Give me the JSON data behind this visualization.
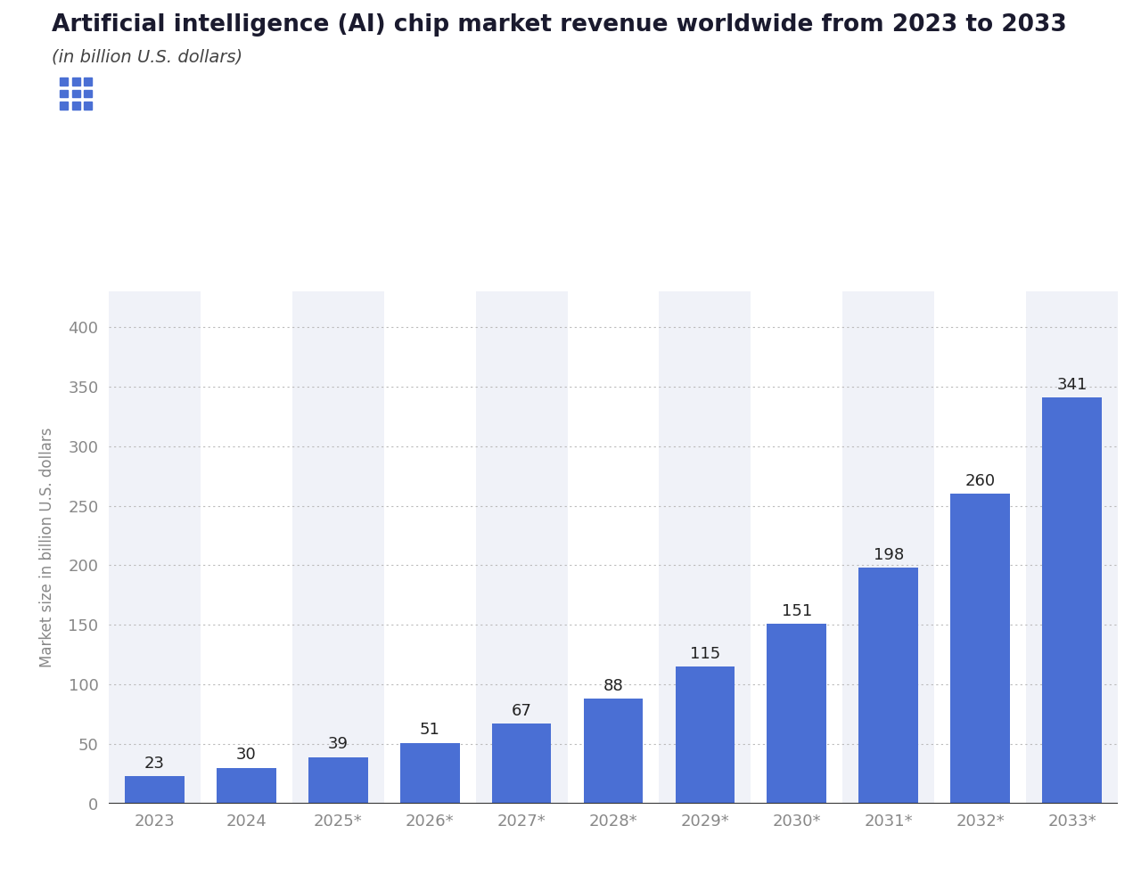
{
  "title": "Artificial intelligence (AI) chip market revenue worldwide from 2023 to 2033",
  "subtitle": "(in billion U.S. dollars)",
  "ylabel": "Market size in billion U.S. dollars",
  "categories": [
    "2023",
    "2024",
    "2025*",
    "2026*",
    "2027*",
    "2028*",
    "2029*",
    "2030*",
    "2031*",
    "2032*",
    "2033*"
  ],
  "values": [
    23,
    30,
    39,
    51,
    67,
    88,
    115,
    151,
    198,
    260,
    341
  ],
  "bar_color": "#4a6fd4",
  "background_color": "#ffffff",
  "col_bg_even": "#f0f2f8",
  "col_bg_odd": "#ffffff",
  "yticks": [
    0,
    50,
    100,
    150,
    200,
    250,
    300,
    350,
    400
  ],
  "ylim": [
    0,
    430
  ],
  "grid_color": "#bbbbbb",
  "title_color": "#1a1a2e",
  "subtitle_color": "#444444",
  "ylabel_color": "#888888",
  "tick_color": "#888888",
  "bar_label_color": "#222222",
  "title_fontsize": 19,
  "subtitle_fontsize": 14,
  "ylabel_fontsize": 12,
  "tick_fontsize": 13,
  "bar_label_fontsize": 13,
  "btn1_bg": "#f2f2f5",
  "btn2_bg": "#4a6fd4",
  "btn_dot_color": "#4a6fd4",
  "btn_icon_color": "#ffffff"
}
